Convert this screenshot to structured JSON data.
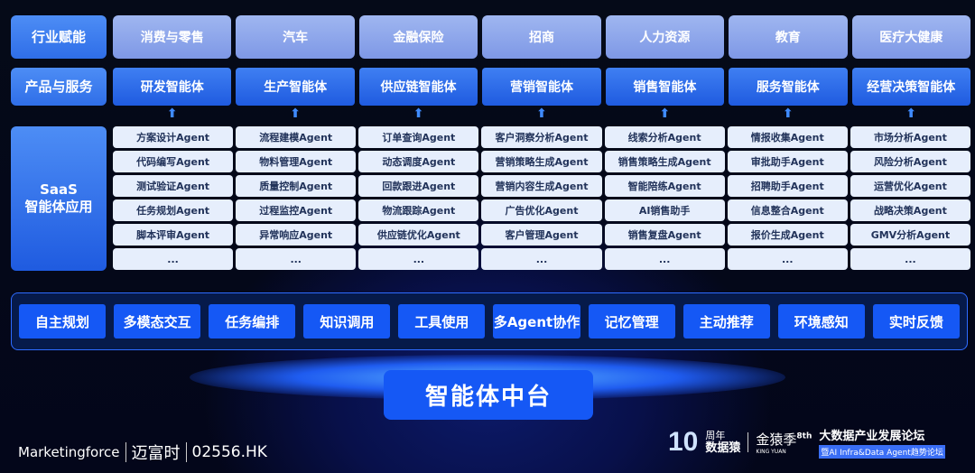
{
  "labels": {
    "industry": "行业赋能",
    "products": "产品与服务",
    "saas_line1": "SaaS",
    "saas_line2": "智能体应用"
  },
  "industries": [
    "消费与零售",
    "汽车",
    "金融保险",
    "招商",
    "人力资源",
    "教育",
    "医疗大健康"
  ],
  "products": [
    "研发智能体",
    "生产智能体",
    "供应链智能体",
    "营销智能体",
    "销售智能体",
    "服务智能体",
    "经营决策智能体"
  ],
  "arrow": "⬆",
  "agent_rows": [
    [
      "方案设计Agent",
      "流程建模Agent",
      "订单查询Agent",
      "客户洞察分析Agent",
      "线索分析Agent",
      "情报收集Agent",
      "市场分析Agent"
    ],
    [
      "代码编写Agent",
      "物料管理Agent",
      "动态调度Agent",
      "营销策略生成Agent",
      "销售策略生成Agent",
      "审批助手Agent",
      "风险分析Agent"
    ],
    [
      "测试验证Agent",
      "质量控制Agent",
      "回款跟进Agent",
      "营销内容生成Agent",
      "智能陪练Agent",
      "招聘助手Agent",
      "运营优化Agent"
    ],
    [
      "任务规划Agent",
      "过程监控Agent",
      "物流跟踪Agent",
      "广告优化Agent",
      "AI销售助手",
      "信息整合Agent",
      "战略决策Agent"
    ],
    [
      "脚本评审Agent",
      "异常响应Agent",
      "供应链优化Agent",
      "客户管理Agent",
      "销售复盘Agent",
      "报价生成Agent",
      "GMV分析Agent"
    ],
    [
      "...",
      "...",
      "...",
      "...",
      "...",
      "...",
      "..."
    ]
  ],
  "capabilities": [
    "自主规划",
    "多模态交互",
    "任务编排",
    "知识调用",
    "工具使用",
    "多Agent协作",
    "记忆管理",
    "主动推荐",
    "环境感知",
    "实时反馈"
  ],
  "platform": "智能体中台",
  "footer": {
    "brand": "Marketingforce",
    "cn_name": "迈富时",
    "ticker": "02556.HK",
    "anniv_num": "10",
    "anniv_l1": "周年",
    "anniv_l2": "数据猿",
    "jinyuan": "金猿季",
    "jinyuan_sup": "8th",
    "jinyuan_en": "KING YUAN",
    "forum": "大数据产业发展论坛",
    "forum_sub": "暨AI Infra&Data Agent趋势论坛"
  },
  "colors": {
    "accent": "#1558f5",
    "label": "#3f7ff2",
    "industry": "#8ea7ec",
    "cell": "#e6eefc"
  }
}
